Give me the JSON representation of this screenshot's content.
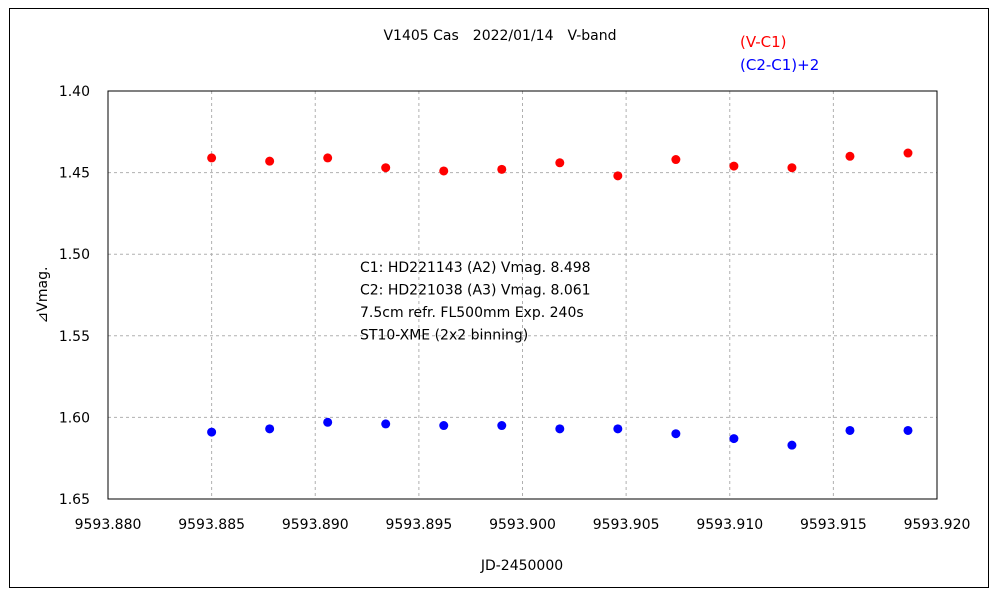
{
  "chart_data": {
    "type": "scatter",
    "title": "V1405 Cas　2022/01/14　V-band",
    "xlabel": "JD-2450000",
    "ylabel": "⊿Vmag.",
    "xlim": [
      9593.88,
      9593.92
    ],
    "ylim": [
      1.4,
      1.65
    ],
    "y_inverted": true,
    "grid": true,
    "legend_position": "top-right",
    "x_ticks": [
      "9593.880",
      "9593.885",
      "9593.890",
      "9593.895",
      "9593.900",
      "9593.905",
      "9593.910",
      "9593.915",
      "9593.920"
    ],
    "y_ticks": [
      "1.40",
      "1.45",
      "1.50",
      "1.55",
      "1.60",
      "1.65"
    ],
    "annotations": [
      "C1: HD221143 (A2) Vmag. 8.498",
      "C2: HD221038 (A3) Vmag. 8.061",
      "7.5cm refr. FL500mm Exp. 240s",
      "ST10-XME (2x2 binning)"
    ],
    "series": [
      {
        "name": "(V-C1)",
        "color": "#ff0000",
        "x": [
          9593.885,
          9593.8878,
          9593.8906,
          9593.8934,
          9593.8962,
          9593.899,
          9593.9018,
          9593.9046,
          9593.9074,
          9593.9102,
          9593.913,
          9593.9158,
          9593.9186
        ],
        "y": [
          1.441,
          1.443,
          1.441,
          1.447,
          1.449,
          1.448,
          1.444,
          1.452,
          1.442,
          1.446,
          1.447,
          1.44,
          1.438
        ]
      },
      {
        "name": "(C2-C1)+2",
        "color": "#0000ff",
        "x": [
          9593.885,
          9593.8878,
          9593.8906,
          9593.8934,
          9593.8962,
          9593.899,
          9593.9018,
          9593.9046,
          9593.9074,
          9593.9102,
          9593.913,
          9593.9158,
          9593.9186
        ],
        "y": [
          1.609,
          1.607,
          1.603,
          1.604,
          1.605,
          1.605,
          1.607,
          1.607,
          1.61,
          1.613,
          1.617,
          1.608,
          1.608
        ]
      }
    ]
  }
}
